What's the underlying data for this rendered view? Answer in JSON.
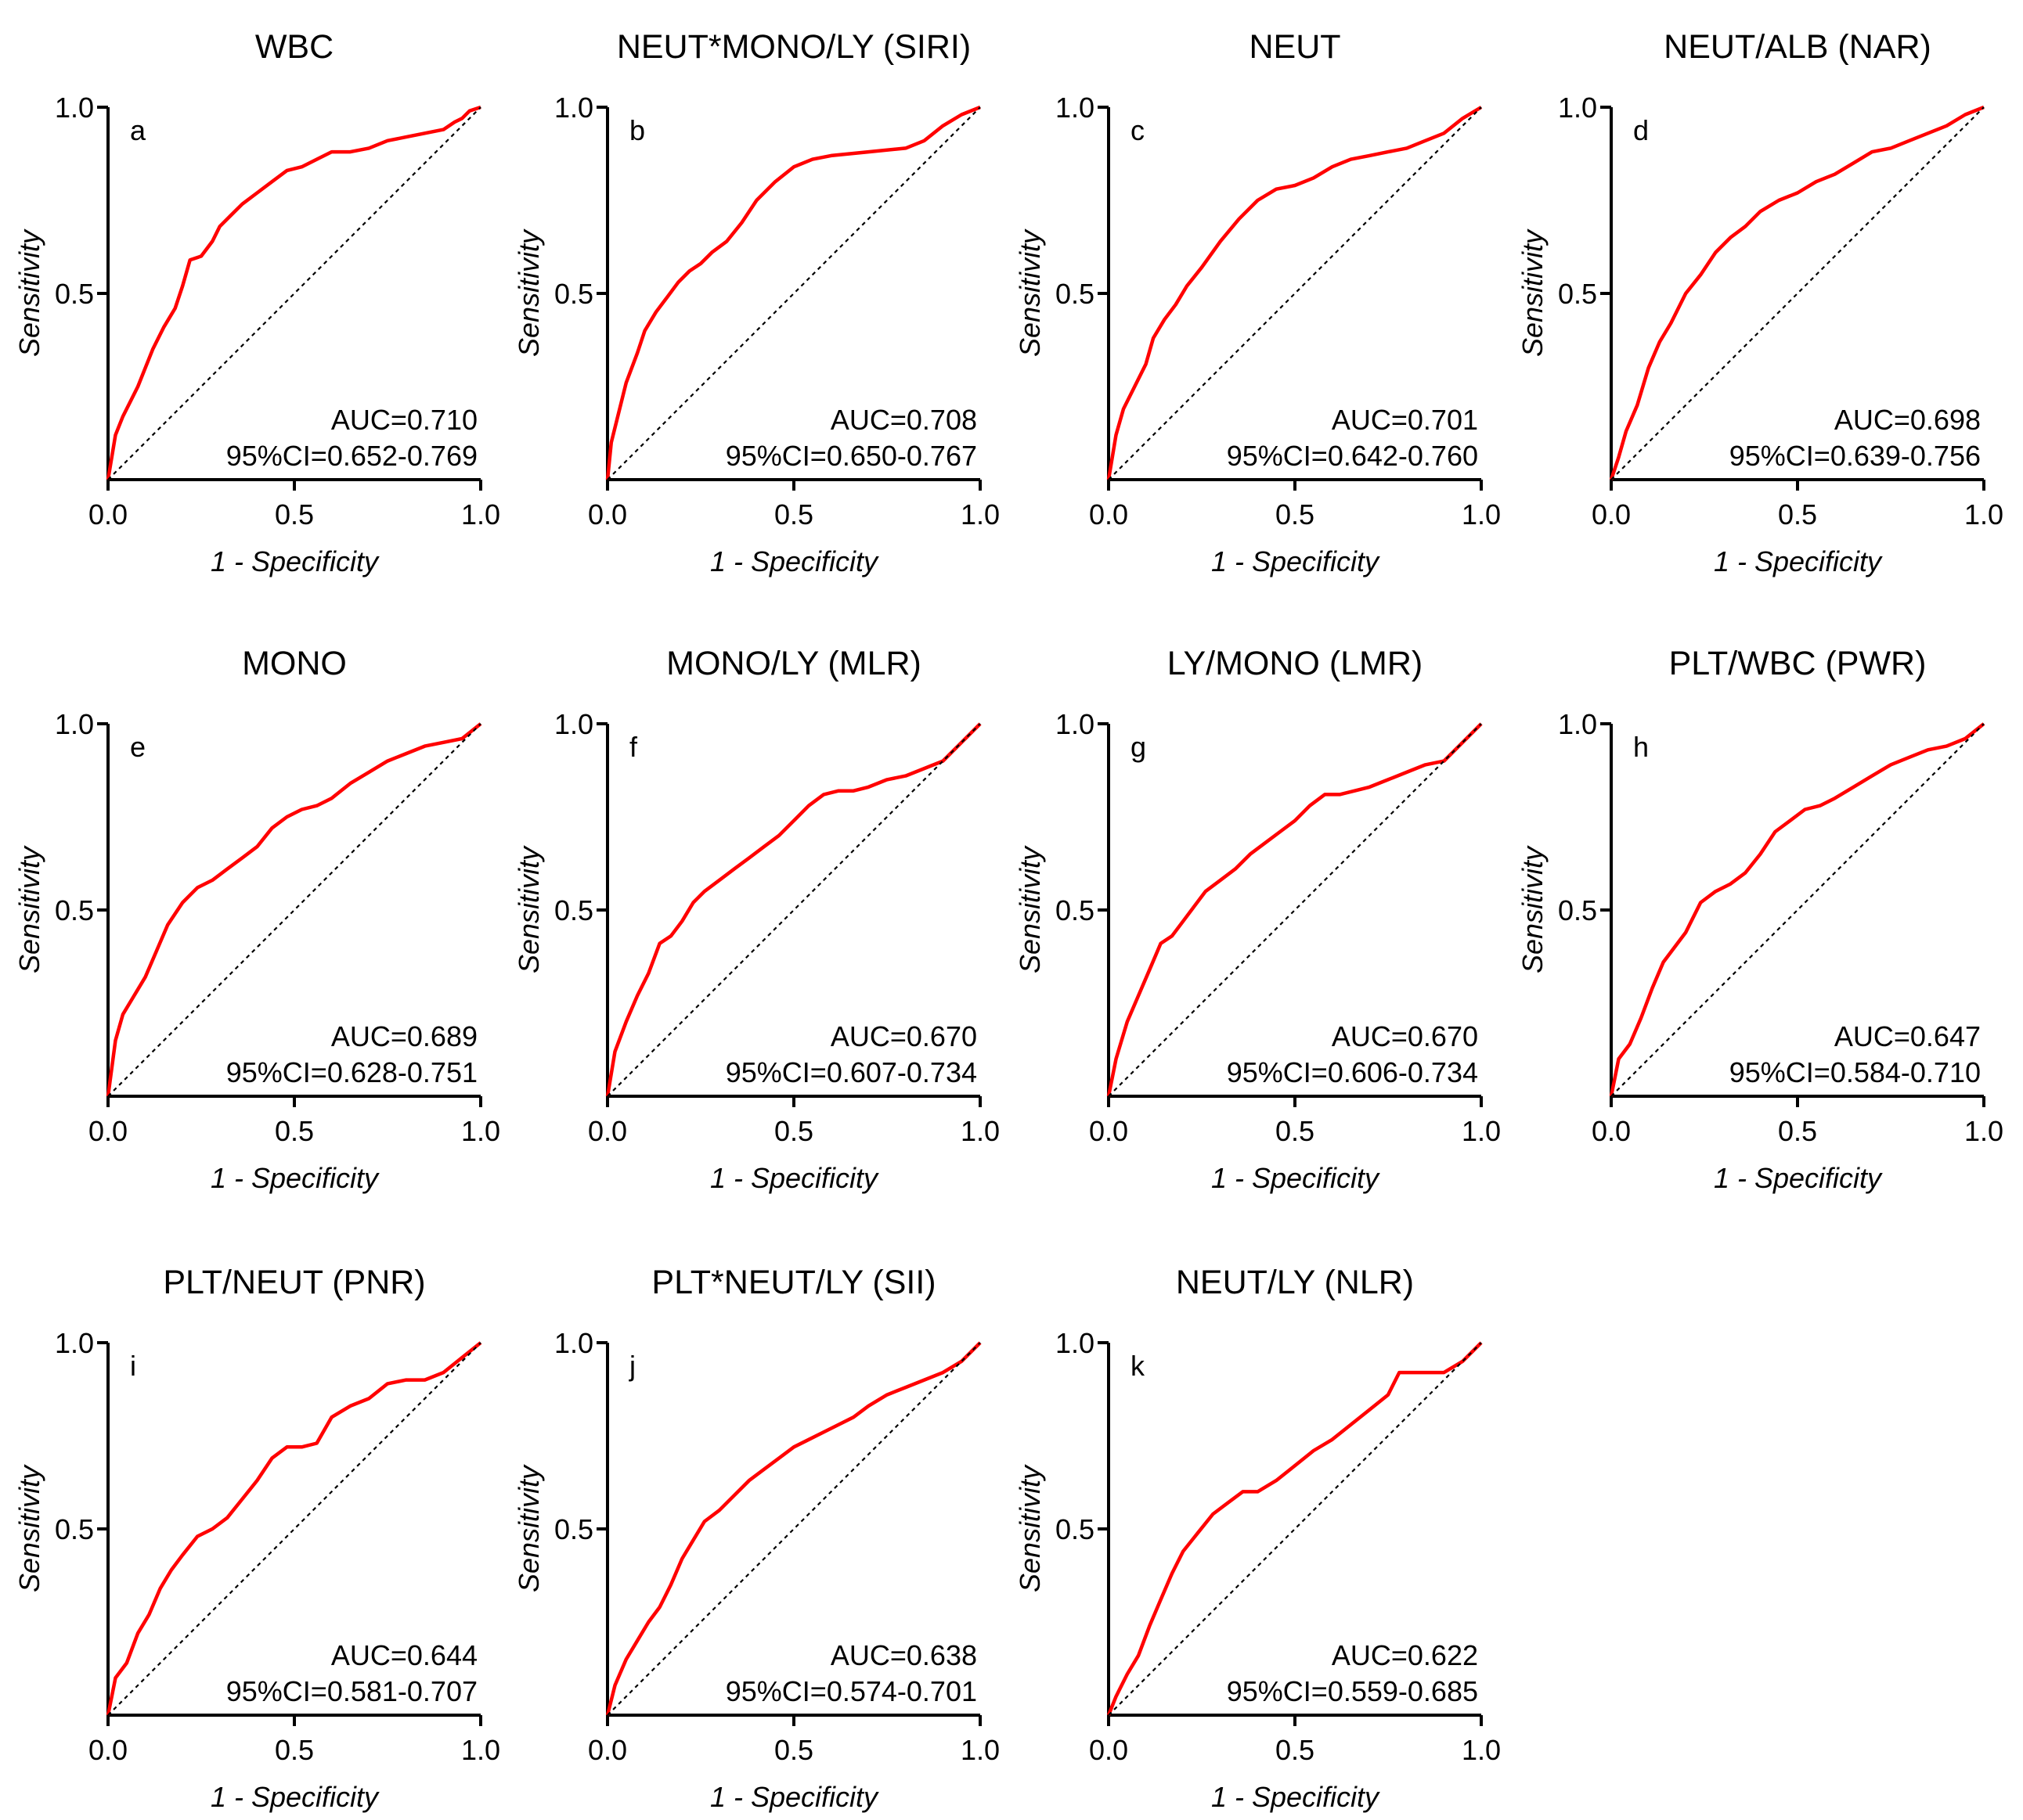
{
  "figure": {
    "xlabel": "1 - Specificity",
    "ylabel": "Sensitivity",
    "curve_color": "#ff0000",
    "reference_color": "#000000",
    "auc_prefix": "AUC=",
    "ci_prefix": "95%CI="
  },
  "chart_data": [
    {
      "type": "line",
      "panel": "a",
      "title": "WBC",
      "auc": "0.710",
      "ci": "0.652-0.769",
      "xticks": [
        "0.0",
        "0.5",
        "1.0"
      ],
      "yticks": [
        "0.5",
        "1.0"
      ],
      "xlim": [
        0,
        1
      ],
      "ylim": [
        0,
        1
      ],
      "series": [
        {
          "name": "ROC",
          "x": [
            0,
            0.02,
            0.04,
            0.06,
            0.08,
            0.1,
            0.12,
            0.15,
            0.18,
            0.2,
            0.22,
            0.25,
            0.28,
            0.3,
            0.33,
            0.36,
            0.4,
            0.44,
            0.48,
            0.52,
            0.56,
            0.6,
            0.65,
            0.7,
            0.75,
            0.8,
            0.85,
            0.9,
            0.93,
            0.95,
            0.97,
            1.0
          ],
          "y": [
            0,
            0.12,
            0.17,
            0.21,
            0.25,
            0.3,
            0.35,
            0.41,
            0.46,
            0.52,
            0.59,
            0.6,
            0.64,
            0.68,
            0.71,
            0.74,
            0.77,
            0.8,
            0.83,
            0.84,
            0.86,
            0.88,
            0.88,
            0.89,
            0.91,
            0.92,
            0.93,
            0.94,
            0.96,
            0.97,
            0.99,
            1.0
          ]
        },
        {
          "name": "Reference",
          "x": [
            0,
            1
          ],
          "y": [
            0,
            1
          ]
        }
      ]
    },
    {
      "type": "line",
      "panel": "b",
      "title": "NEUT*MONO/LY (SIRI)",
      "auc": "0.708",
      "ci": "0.650-0.767",
      "xticks": [
        "0.0",
        "0.5",
        "1.0"
      ],
      "yticks": [
        "0.5",
        "1.0"
      ],
      "xlim": [
        0,
        1
      ],
      "ylim": [
        0,
        1
      ],
      "series": [
        {
          "name": "ROC",
          "x": [
            0,
            0.01,
            0.03,
            0.05,
            0.08,
            0.1,
            0.13,
            0.16,
            0.19,
            0.22,
            0.25,
            0.28,
            0.32,
            0.36,
            0.4,
            0.45,
            0.5,
            0.55,
            0.6,
            0.7,
            0.8,
            0.85,
            0.9,
            0.95,
            1.0
          ],
          "y": [
            0,
            0.1,
            0.18,
            0.26,
            0.34,
            0.4,
            0.45,
            0.49,
            0.53,
            0.56,
            0.58,
            0.61,
            0.64,
            0.69,
            0.75,
            0.8,
            0.84,
            0.86,
            0.87,
            0.88,
            0.89,
            0.91,
            0.95,
            0.98,
            1.0
          ]
        },
        {
          "name": "Reference",
          "x": [
            0,
            1
          ],
          "y": [
            0,
            1
          ]
        }
      ]
    },
    {
      "type": "line",
      "panel": "c",
      "title": "NEUT",
      "auc": "0.701",
      "ci": "0.642-0.760",
      "xticks": [
        "0.0",
        "0.5",
        "1.0"
      ],
      "yticks": [
        "0.5",
        "1.0"
      ],
      "xlim": [
        0,
        1
      ],
      "ylim": [
        0,
        1
      ],
      "series": [
        {
          "name": "ROC",
          "x": [
            0,
            0.02,
            0.04,
            0.07,
            0.1,
            0.12,
            0.15,
            0.18,
            0.21,
            0.25,
            0.3,
            0.35,
            0.4,
            0.45,
            0.5,
            0.55,
            0.6,
            0.65,
            0.7,
            0.75,
            0.8,
            0.85,
            0.9,
            0.95,
            1.0
          ],
          "y": [
            0,
            0.12,
            0.19,
            0.25,
            0.31,
            0.38,
            0.43,
            0.47,
            0.52,
            0.57,
            0.64,
            0.7,
            0.75,
            0.78,
            0.79,
            0.81,
            0.84,
            0.86,
            0.87,
            0.88,
            0.89,
            0.91,
            0.93,
            0.97,
            1.0
          ]
        },
        {
          "name": "Reference",
          "x": [
            0,
            1
          ],
          "y": [
            0,
            1
          ]
        }
      ]
    },
    {
      "type": "line",
      "panel": "d",
      "title": "NEUT/ALB (NAR)",
      "auc": "0.698",
      "ci": "0.639-0.756",
      "xticks": [
        "0.0",
        "0.5",
        "1.0"
      ],
      "yticks": [
        "0.5",
        "1.0"
      ],
      "xlim": [
        0,
        1
      ],
      "ylim": [
        0,
        1
      ],
      "series": [
        {
          "name": "ROC",
          "x": [
            0,
            0.02,
            0.04,
            0.07,
            0.1,
            0.13,
            0.16,
            0.2,
            0.24,
            0.28,
            0.32,
            0.36,
            0.4,
            0.45,
            0.5,
            0.55,
            0.6,
            0.65,
            0.7,
            0.75,
            0.8,
            0.85,
            0.9,
            0.95,
            1.0
          ],
          "y": [
            0,
            0.06,
            0.13,
            0.2,
            0.3,
            0.37,
            0.42,
            0.5,
            0.55,
            0.61,
            0.65,
            0.68,
            0.72,
            0.75,
            0.77,
            0.8,
            0.82,
            0.85,
            0.88,
            0.89,
            0.91,
            0.93,
            0.95,
            0.98,
            1.0
          ]
        },
        {
          "name": "Reference",
          "x": [
            0,
            1
          ],
          "y": [
            0,
            1
          ]
        }
      ]
    },
    {
      "type": "line",
      "panel": "e",
      "title": "MONO",
      "auc": "0.689",
      "ci": "0.628-0.751",
      "xticks": [
        "0.0",
        "0.5",
        "1.0"
      ],
      "yticks": [
        "0.5",
        "1.0"
      ],
      "xlim": [
        0,
        1
      ],
      "ylim": [
        0,
        1
      ],
      "series": [
        {
          "name": "ROC",
          "x": [
            0,
            0.02,
            0.04,
            0.07,
            0.1,
            0.13,
            0.16,
            0.2,
            0.24,
            0.28,
            0.32,
            0.36,
            0.4,
            0.44,
            0.48,
            0.52,
            0.56,
            0.6,
            0.65,
            0.7,
            0.75,
            0.8,
            0.85,
            0.9,
            0.95,
            1.0
          ],
          "y": [
            0,
            0.15,
            0.22,
            0.27,
            0.32,
            0.39,
            0.46,
            0.52,
            0.56,
            0.58,
            0.61,
            0.64,
            0.67,
            0.72,
            0.75,
            0.77,
            0.78,
            0.8,
            0.84,
            0.87,
            0.9,
            0.92,
            0.94,
            0.95,
            0.96,
            1.0
          ]
        },
        {
          "name": "Reference",
          "x": [
            0,
            1
          ],
          "y": [
            0,
            1
          ]
        }
      ]
    },
    {
      "type": "line",
      "panel": "f",
      "title": "MONO/LY (MLR)",
      "auc": "0.670",
      "ci": "0.607-0.734",
      "xticks": [
        "0.0",
        "0.5",
        "1.0"
      ],
      "yticks": [
        "0.5",
        "1.0"
      ],
      "xlim": [
        0,
        1
      ],
      "ylim": [
        0,
        1
      ],
      "series": [
        {
          "name": "ROC",
          "x": [
            0,
            0.02,
            0.05,
            0.08,
            0.11,
            0.14,
            0.17,
            0.2,
            0.23,
            0.26,
            0.3,
            0.34,
            0.38,
            0.42,
            0.46,
            0.5,
            0.54,
            0.58,
            0.62,
            0.66,
            0.7,
            0.75,
            0.8,
            0.85,
            0.9,
            0.95,
            1.0
          ],
          "y": [
            0,
            0.12,
            0.2,
            0.27,
            0.33,
            0.41,
            0.43,
            0.47,
            0.52,
            0.55,
            0.58,
            0.61,
            0.64,
            0.67,
            0.7,
            0.74,
            0.78,
            0.81,
            0.82,
            0.82,
            0.83,
            0.85,
            0.86,
            0.88,
            0.9,
            0.95,
            1.0
          ]
        },
        {
          "name": "Reference",
          "x": [
            0,
            1
          ],
          "y": [
            0,
            1
          ]
        }
      ]
    },
    {
      "type": "line",
      "panel": "g",
      "title": "LY/MONO (LMR)",
      "auc": "0.670",
      "ci": "0.606-0.734",
      "xticks": [
        "0.0",
        "0.5",
        "1.0"
      ],
      "yticks": [
        "0.5",
        "1.0"
      ],
      "xlim": [
        0,
        1
      ],
      "ylim": [
        0,
        1
      ],
      "series": [
        {
          "name": "ROC",
          "x": [
            0,
            0.02,
            0.05,
            0.08,
            0.11,
            0.14,
            0.17,
            0.2,
            0.23,
            0.26,
            0.3,
            0.34,
            0.38,
            0.42,
            0.46,
            0.5,
            0.54,
            0.58,
            0.62,
            0.66,
            0.7,
            0.75,
            0.8,
            0.85,
            0.9,
            0.95,
            1.0
          ],
          "y": [
            0,
            0.1,
            0.2,
            0.27,
            0.34,
            0.41,
            0.43,
            0.47,
            0.51,
            0.55,
            0.58,
            0.61,
            0.65,
            0.68,
            0.71,
            0.74,
            0.78,
            0.81,
            0.81,
            0.82,
            0.83,
            0.85,
            0.87,
            0.89,
            0.9,
            0.95,
            1.0
          ]
        },
        {
          "name": "Reference",
          "x": [
            0,
            1
          ],
          "y": [
            0,
            1
          ]
        }
      ]
    },
    {
      "type": "line",
      "panel": "h",
      "title": "PLT/WBC (PWR)",
      "auc": "0.647",
      "ci": "0.584-0.710",
      "xticks": [
        "0.0",
        "0.5",
        "1.0"
      ],
      "yticks": [
        "0.5",
        "1.0"
      ],
      "xlim": [
        0,
        1
      ],
      "ylim": [
        0,
        1
      ],
      "series": [
        {
          "name": "ROC",
          "x": [
            0,
            0.02,
            0.05,
            0.08,
            0.11,
            0.14,
            0.17,
            0.2,
            0.24,
            0.28,
            0.32,
            0.36,
            0.4,
            0.44,
            0.48,
            0.52,
            0.56,
            0.6,
            0.65,
            0.7,
            0.75,
            0.8,
            0.85,
            0.9,
            0.95,
            1.0
          ],
          "y": [
            0,
            0.1,
            0.14,
            0.21,
            0.29,
            0.36,
            0.4,
            0.44,
            0.52,
            0.55,
            0.57,
            0.6,
            0.65,
            0.71,
            0.74,
            0.77,
            0.78,
            0.8,
            0.83,
            0.86,
            0.89,
            0.91,
            0.93,
            0.94,
            0.96,
            1.0
          ]
        },
        {
          "name": "Reference",
          "x": [
            0,
            1
          ],
          "y": [
            0,
            1
          ]
        }
      ]
    },
    {
      "type": "line",
      "panel": "i",
      "title": "PLT/NEUT (PNR)",
      "auc": "0.644",
      "ci": "0.581-0.707",
      "xticks": [
        "0.0",
        "0.5",
        "1.0"
      ],
      "yticks": [
        "0.5",
        "1.0"
      ],
      "xlim": [
        0,
        1
      ],
      "ylim": [
        0,
        1
      ],
      "series": [
        {
          "name": "ROC",
          "x": [
            0,
            0.02,
            0.05,
            0.08,
            0.11,
            0.14,
            0.17,
            0.2,
            0.24,
            0.28,
            0.32,
            0.36,
            0.4,
            0.44,
            0.48,
            0.52,
            0.56,
            0.6,
            0.65,
            0.7,
            0.75,
            0.8,
            0.85,
            0.9,
            0.95,
            1.0
          ],
          "y": [
            0,
            0.1,
            0.14,
            0.22,
            0.27,
            0.34,
            0.39,
            0.43,
            0.48,
            0.5,
            0.53,
            0.58,
            0.63,
            0.69,
            0.72,
            0.72,
            0.73,
            0.8,
            0.83,
            0.85,
            0.89,
            0.9,
            0.9,
            0.92,
            0.96,
            1.0
          ]
        },
        {
          "name": "Reference",
          "x": [
            0,
            1
          ],
          "y": [
            0,
            1
          ]
        }
      ]
    },
    {
      "type": "line",
      "panel": "j",
      "title": "PLT*NEUT/LY (SII)",
      "auc": "0.638",
      "ci": "0.574-0.701",
      "xticks": [
        "0.0",
        "0.5",
        "1.0"
      ],
      "yticks": [
        "0.5",
        "1.0"
      ],
      "xlim": [
        0,
        1
      ],
      "ylim": [
        0,
        1
      ],
      "series": [
        {
          "name": "ROC",
          "x": [
            0,
            0.02,
            0.05,
            0.08,
            0.11,
            0.14,
            0.17,
            0.2,
            0.23,
            0.26,
            0.3,
            0.34,
            0.38,
            0.42,
            0.46,
            0.5,
            0.54,
            0.58,
            0.62,
            0.66,
            0.7,
            0.75,
            0.8,
            0.85,
            0.9,
            0.95,
            1.0
          ],
          "y": [
            0,
            0.08,
            0.15,
            0.2,
            0.25,
            0.29,
            0.35,
            0.42,
            0.47,
            0.52,
            0.55,
            0.59,
            0.63,
            0.66,
            0.69,
            0.72,
            0.74,
            0.76,
            0.78,
            0.8,
            0.83,
            0.86,
            0.88,
            0.9,
            0.92,
            0.95,
            1.0
          ]
        },
        {
          "name": "Reference",
          "x": [
            0,
            1
          ],
          "y": [
            0,
            1
          ]
        }
      ]
    },
    {
      "type": "line",
      "panel": "k",
      "title": "NEUT/LY (NLR)",
      "auc": "0.622",
      "ci": "0.559-0.685",
      "xticks": [
        "0.0",
        "0.5",
        "1.0"
      ],
      "yticks": [
        "0.5",
        "1.0"
      ],
      "xlim": [
        0,
        1
      ],
      "ylim": [
        0,
        1
      ],
      "series": [
        {
          "name": "ROC",
          "x": [
            0,
            0.02,
            0.05,
            0.08,
            0.11,
            0.14,
            0.17,
            0.2,
            0.24,
            0.28,
            0.32,
            0.36,
            0.4,
            0.45,
            0.5,
            0.55,
            0.6,
            0.65,
            0.7,
            0.75,
            0.78,
            0.8,
            0.85,
            0.9,
            0.95,
            1.0
          ],
          "y": [
            0,
            0.05,
            0.11,
            0.16,
            0.24,
            0.31,
            0.38,
            0.44,
            0.49,
            0.54,
            0.57,
            0.6,
            0.6,
            0.63,
            0.67,
            0.71,
            0.74,
            0.78,
            0.82,
            0.86,
            0.92,
            0.92,
            0.92,
            0.92,
            0.95,
            1.0
          ]
        },
        {
          "name": "Reference",
          "x": [
            0,
            1
          ],
          "y": [
            0,
            1
          ]
        }
      ]
    }
  ]
}
